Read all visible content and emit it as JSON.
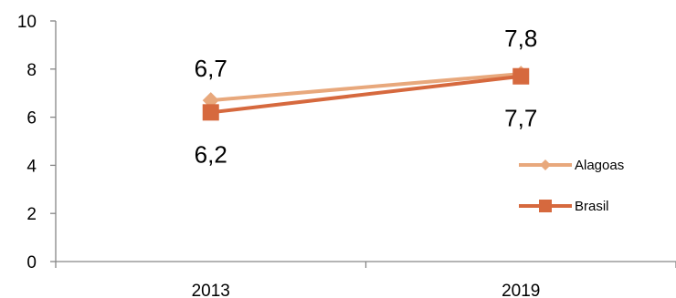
{
  "chart_data": {
    "type": "line",
    "categories": [
      "2013",
      "2019"
    ],
    "series": [
      {
        "name": "Alagoas",
        "values": [
          6.7,
          7.8
        ],
        "labels": [
          "6,7",
          "7,8"
        ],
        "color": "#E8A87C",
        "marker": "diamond"
      },
      {
        "name": "Brasil",
        "values": [
          6.2,
          7.7
        ],
        "labels": [
          "6,2",
          "7,7"
        ],
        "color": "#D6693E",
        "marker": "square"
      }
    ],
    "ylim": [
      0,
      10
    ],
    "yticks": [
      "0",
      "2",
      "4",
      "6",
      "8",
      "10"
    ],
    "ytick_values": [
      0,
      2,
      4,
      6,
      8,
      10
    ],
    "grid": false,
    "legend_position": "right"
  }
}
